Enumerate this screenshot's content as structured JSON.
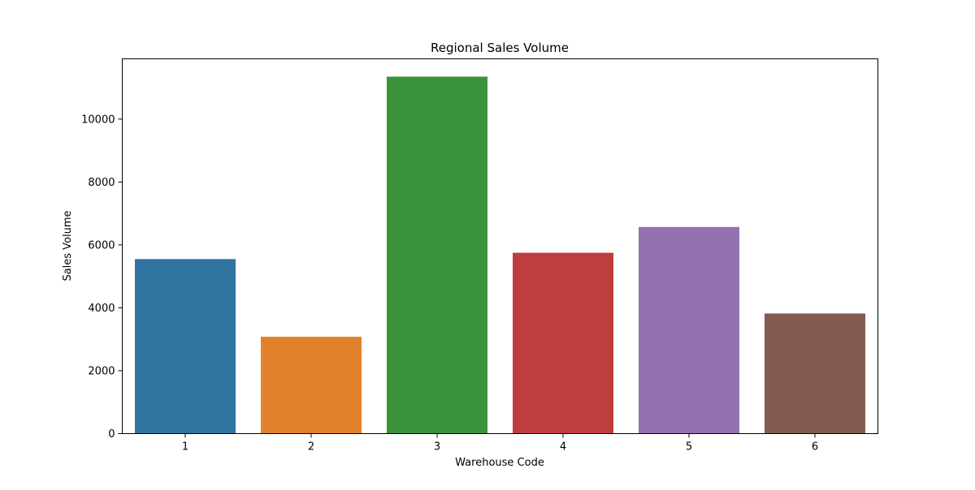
{
  "chart_data": {
    "type": "bar",
    "title": "Regional Sales Volume",
    "xlabel": "Warehouse Code",
    "ylabel": "Sales Volume",
    "categories": [
      "1",
      "2",
      "3",
      "4",
      "5",
      "6"
    ],
    "values": [
      5550,
      3080,
      11350,
      5750,
      6570,
      3820
    ],
    "colors": [
      "#3274a1",
      "#e1812c",
      "#3a923a",
      "#c03d3e",
      "#9372b2",
      "#845b53"
    ],
    "ylim": [
      0,
      11917
    ],
    "yticks": [
      0,
      2000,
      4000,
      6000,
      8000,
      10000
    ],
    "grid": false,
    "legend": "none"
  }
}
